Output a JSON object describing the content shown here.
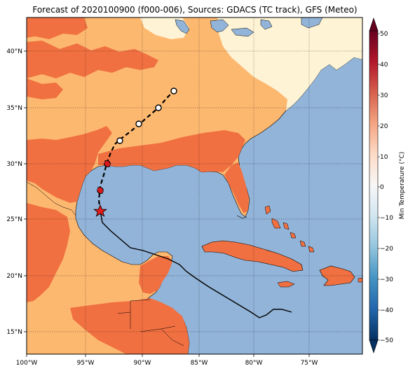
{
  "title": "Forecast of 2020100900 (f000-006), Sources: GDACS (TC track), GFS (Meteo)",
  "colorbar": {
    "label": "Min Temperature (°C)",
    "ticks": [
      "50",
      "40",
      "30",
      "20",
      "10",
      "0",
      "−10",
      "−20",
      "−30",
      "−40",
      "−50"
    ],
    "range": [
      -50,
      50
    ],
    "colors": [
      "#67001f",
      "#b2182b",
      "#d6604d",
      "#f4a582",
      "#fddbc7",
      "#f7f7f7",
      "#d1e5f0",
      "#92c5de",
      "#4393c3",
      "#2166ac",
      "#053061"
    ]
  },
  "map": {
    "lon_labels": [
      "100°W",
      "95°W",
      "90°W",
      "85°W",
      "80°W",
      "75°W"
    ],
    "lat_labels": [
      "40°N",
      "35°N",
      "30°N",
      "25°N",
      "20°N",
      "15°N"
    ],
    "gridlines": true,
    "ocean_color": "#92b4d8",
    "temperature_fill_colors": {
      "cool_north": "#fef3d5",
      "mid": "#fdb870",
      "warm": "#f07041"
    }
  },
  "track": {
    "forecast_markers": [
      "hurricane-symbol",
      "hurricane-symbol",
      "open-circle",
      "open-circle",
      "open-circle",
      "open-circle"
    ],
    "current_position_marker": "star",
    "past_track_line": "solid-black",
    "forecast_track_line": "dashed-black"
  }
}
